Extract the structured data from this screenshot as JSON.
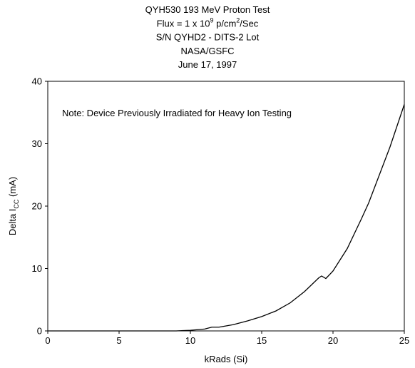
{
  "chart_data": {
    "type": "line",
    "title": [
      [
        "QYH530 193 MeV Proton Test"
      ],
      [
        "Flux = 1 x 10",
        "9",
        " p/cm",
        "2",
        "/Sec"
      ],
      [
        "S/N QYHD2 - DITS-2 Lot"
      ],
      [
        "NASA/GSFC"
      ],
      [
        "June 17, 1997"
      ]
    ],
    "annotation": "Note: Device Previously Irradiated for Heavy Ion Testing",
    "x_label": "kRads (Si)",
    "y_label": [
      "Delta I",
      "CC",
      " (mA)"
    ],
    "x": [
      0,
      5,
      9,
      10,
      11,
      11.5,
      12,
      13,
      14,
      15,
      16,
      17,
      18,
      19,
      19.2,
      19.5,
      20,
      21,
      22,
      22.5,
      23,
      24,
      25
    ],
    "series": [
      {
        "color": "#000000",
        "values": [
          0,
          0,
          0,
          0.1,
          0.3,
          0.6,
          0.6,
          1.0,
          1.6,
          2.3,
          3.2,
          4.5,
          6.3,
          8.5,
          8.8,
          8.4,
          9.6,
          13.2,
          18,
          20.5,
          23.5,
          29.5,
          36.3
        ]
      }
    ],
    "xlim": [
      0,
      25
    ],
    "xticks": [
      0,
      5,
      10,
      15,
      20,
      25
    ],
    "ylim": [
      0,
      40
    ],
    "yticks": [
      0,
      10,
      20,
      30,
      40
    ]
  }
}
